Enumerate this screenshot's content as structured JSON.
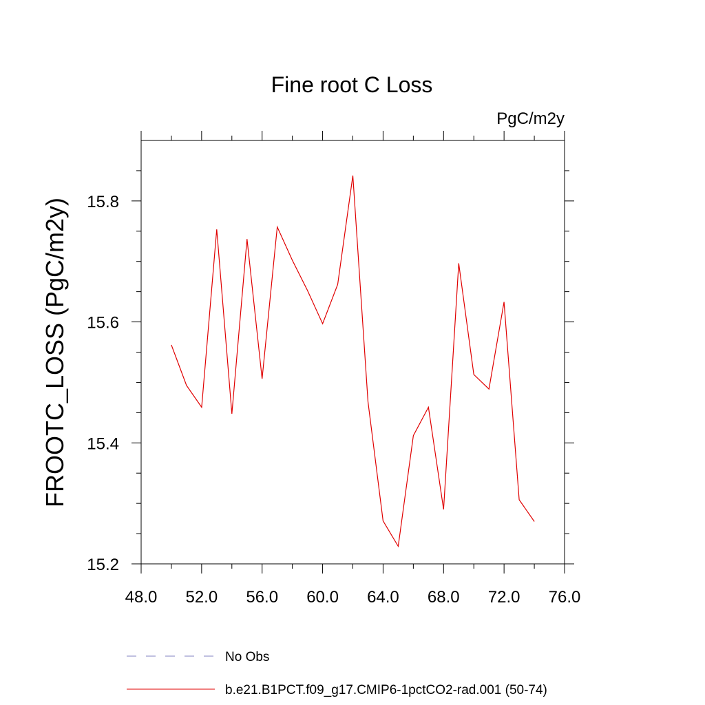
{
  "chart_data": {
    "type": "line",
    "title": "Fine root C Loss",
    "units_label": "PgC/m2y",
    "ylabel": "FROOTC_LOSS  (PgC/m2y)",
    "xlabel": "",
    "xlim": [
      48,
      76
    ],
    "ylim": [
      15.2,
      15.9
    ],
    "xticks": [
      48,
      52,
      56,
      60,
      64,
      68,
      72,
      76
    ],
    "xtick_labels": [
      "48.0",
      "52.0",
      "56.0",
      "60.0",
      "64.0",
      "68.0",
      "72.0",
      "76.0"
    ],
    "x_minor_step": 2,
    "yticks": [
      15.2,
      15.4,
      15.6,
      15.8
    ],
    "ytick_labels": [
      "15.2",
      "15.4",
      "15.6",
      "15.8"
    ],
    "y_minor_step": 0.05,
    "grid": false,
    "legend_position": "bottom",
    "legend": [
      {
        "label": "No Obs",
        "color": "#8080c0",
        "dash": true
      },
      {
        "label": "b.e21.B1PCT.f09_g17.CMIP6-1pctCO2-rad.001 (50-74)",
        "color": "#e00000",
        "dash": false
      }
    ],
    "series": [
      {
        "name": "b.e21.B1PCT.f09_g17.CMIP6-1pctCO2-rad.001 (50-74)",
        "color": "#e00000",
        "x": [
          50,
          51,
          52,
          53,
          54,
          55,
          56,
          57,
          58,
          59,
          60,
          61,
          62,
          63,
          64,
          65,
          66,
          67,
          68,
          69,
          70,
          71,
          72,
          73,
          74
        ],
        "y": [
          15.562,
          15.495,
          15.459,
          15.753,
          15.448,
          15.737,
          15.506,
          15.757,
          15.702,
          15.652,
          15.597,
          15.662,
          15.842,
          15.468,
          15.271,
          15.229,
          15.412,
          15.459,
          15.29,
          15.697,
          15.513,
          15.489,
          15.633,
          15.306,
          15.27
        ]
      }
    ]
  }
}
